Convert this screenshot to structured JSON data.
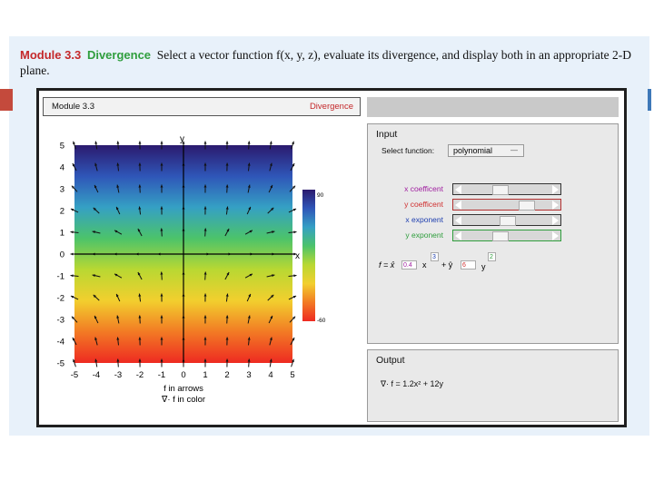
{
  "header": {
    "module_label": "Module 3.3",
    "module_title": "Divergence",
    "description": "Select a vector function f(x, y, z), evaluate its divergence, and display both in an appropriate 2-D plane."
  },
  "app": {
    "title_left": "Module 3.3",
    "title_right": "Divergence"
  },
  "input_panel": {
    "heading": "Input",
    "select_label": "Select function:",
    "select_value": "polynomial",
    "sliders": [
      {
        "label": "x coefficent",
        "color": "#a020a0",
        "value": 0.4,
        "border": "#333333"
      },
      {
        "label": "y coefficent",
        "color": "#d03030",
        "value": 0.75,
        "border": "#b23030"
      },
      {
        "label": "x exponent",
        "color": "#2040b0",
        "value": 0.5,
        "border": "#333333"
      },
      {
        "label": "y exponent",
        "color": "#2f9e3d",
        "value": 0.4,
        "border": "#2f9e3d"
      }
    ],
    "formula": {
      "f_label": "f = x̂",
      "x_coef": "0.4",
      "x_var": "x",
      "x_exp": "3",
      "plus_y": "+ ŷ",
      "y_coef": "6",
      "y_var": "y",
      "y_exp": "2"
    }
  },
  "output_panel": {
    "heading": "Output",
    "result": "∇· f = 1.2x² + 12y"
  },
  "plot": {
    "x_axis_label": "x",
    "y_axis_label": "y",
    "caption_line1": "f in arrows",
    "caption_line2": "∇· f in color",
    "colorbar_max": "90",
    "colorbar_min": "-60",
    "colors": [
      "#2b1a6e",
      "#2f56b8",
      "#35a0c4",
      "#4cc36a",
      "#b9d832",
      "#f2cf2e",
      "#f27a24",
      "#ee2a22"
    ]
  },
  "chart_data": {
    "type": "heatmap",
    "x_range": [
      -5,
      5
    ],
    "y_range": [
      -5,
      5
    ],
    "x_ticks": [
      "-5",
      "-4",
      "-3",
      "-2",
      "-1",
      "0",
      "1",
      "2",
      "3",
      "4",
      "5"
    ],
    "y_ticks": [
      "5",
      "4",
      "3",
      "2",
      "1",
      "0",
      "-1",
      "-2",
      "-3",
      "-4",
      "-5"
    ],
    "xlabel": "x",
    "ylabel": "y",
    "color_range": [
      -60,
      90
    ]
  }
}
